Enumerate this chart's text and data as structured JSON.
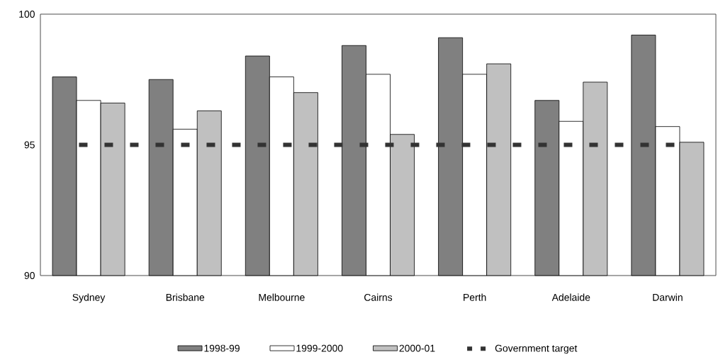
{
  "chart_data": {
    "type": "bar",
    "categories": [
      "Sydney",
      "Brisbane",
      "Melbourne",
      "Cairns",
      "Perth",
      "Adelaide",
      "Darwin"
    ],
    "series": [
      {
        "name": "1998-99",
        "color": "#808080",
        "values": [
          97.6,
          97.5,
          98.4,
          98.8,
          99.1,
          96.7,
          99.2
        ]
      },
      {
        "name": "1999-2000",
        "color": "#ffffff",
        "values": [
          96.7,
          95.6,
          97.6,
          97.7,
          97.7,
          95.9,
          95.7
        ]
      },
      {
        "name": "2000-01",
        "color": "#c0c0c0",
        "values": [
          96.6,
          96.3,
          97.0,
          95.4,
          98.1,
          97.4,
          95.1
        ]
      }
    ],
    "ylim": [
      90,
      100
    ],
    "yticks": [
      90,
      95,
      100
    ],
    "ref_lines": [
      {
        "axis": "y",
        "value": 95,
        "label": "Government target",
        "color": "#333333",
        "line_style": "dashed"
      }
    ],
    "legend": "bottom"
  }
}
